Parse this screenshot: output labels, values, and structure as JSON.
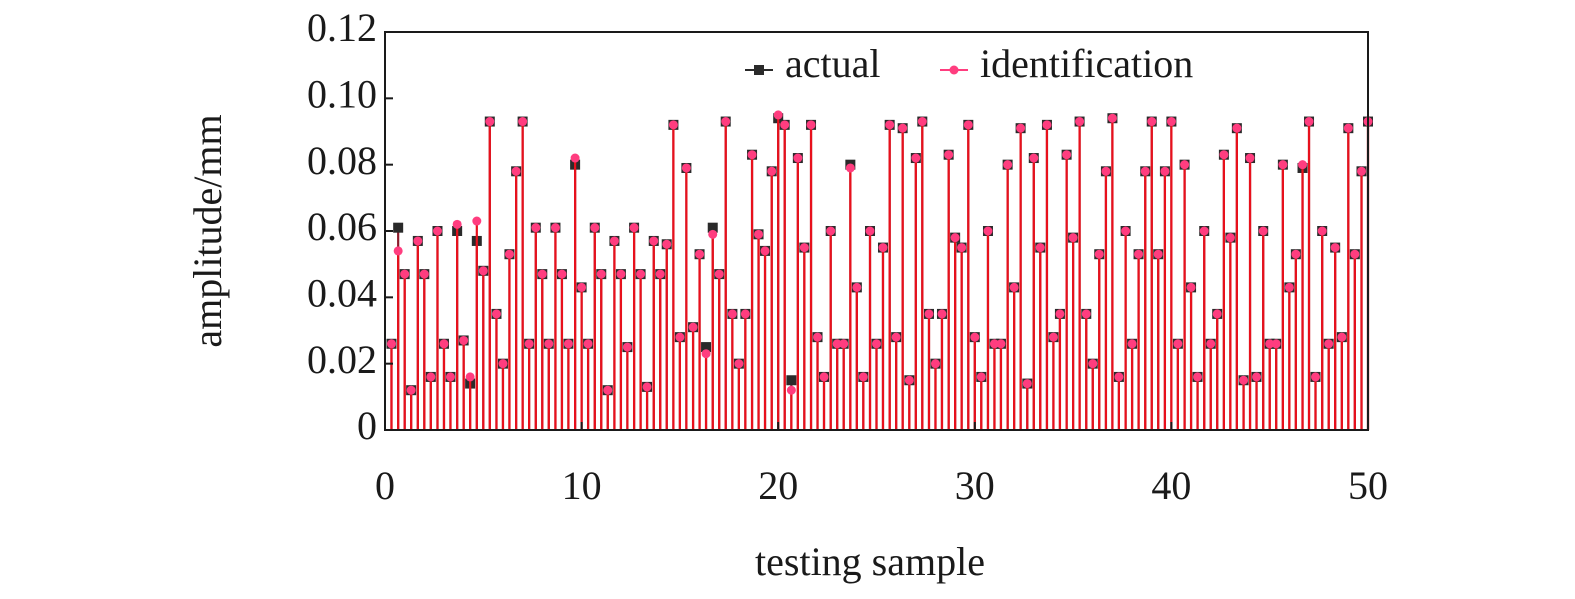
{
  "chart_data": {
    "type": "stem",
    "xlabel": "testing sample",
    "ylabel": "amplitude/mm",
    "xlim": [
      0,
      50
    ],
    "xticks": [
      0,
      10,
      20,
      30,
      40,
      50
    ],
    "ylim": [
      0,
      0.12
    ],
    "yticks": [
      {
        "value": 0,
        "label": "0"
      },
      {
        "value": 0.02,
        "label": "0.02"
      },
      {
        "value": 0.04,
        "label": "0.04"
      },
      {
        "value": 0.06,
        "label": "0.06"
      },
      {
        "value": 0.08,
        "label": "0.08"
      },
      {
        "value": 0.1,
        "label": "0.10"
      },
      {
        "value": 0.12,
        "label": "0.12"
      }
    ],
    "legend": "upper right",
    "x": [
      0.33,
      0.67,
      1,
      1.33,
      1.67,
      2,
      2.33,
      2.67,
      3,
      3.33,
      3.67,
      4,
      4.33,
      4.67,
      5,
      5.33,
      5.67,
      6,
      6.33,
      6.67,
      7,
      7.33,
      7.67,
      8,
      8.33,
      8.67,
      9,
      9.33,
      9.67,
      10,
      10.33,
      10.67,
      11,
      11.33,
      11.67,
      12,
      12.33,
      12.67,
      13,
      13.33,
      13.67,
      14,
      14.33,
      14.67,
      15,
      15.33,
      15.67,
      16,
      16.33,
      16.67,
      17,
      17.33,
      17.67,
      18,
      18.33,
      18.67,
      19,
      19.33,
      19.67,
      20,
      20.33,
      20.67,
      21,
      21.33,
      21.67,
      22,
      22.33,
      22.67,
      23,
      23.33,
      23.67,
      24,
      24.33,
      24.67,
      25,
      25.33,
      25.67,
      26,
      26.33,
      26.67,
      27,
      27.33,
      27.67,
      28,
      28.33,
      28.67,
      29,
      29.33,
      29.67,
      30,
      30.33,
      30.67,
      31,
      31.33,
      31.67,
      32,
      32.33,
      32.67,
      33,
      33.33,
      33.67,
      34,
      34.33,
      34.67,
      35,
      35.33,
      35.67,
      36,
      36.33,
      36.67,
      37,
      37.33,
      37.67,
      38,
      38.33,
      38.67,
      39,
      39.33,
      39.67,
      40,
      40.33,
      40.67,
      41,
      41.33,
      41.67,
      42,
      42.33,
      42.67,
      43,
      43.33,
      43.67,
      44,
      44.33,
      44.67,
      45,
      45.33,
      45.67,
      46,
      46.33,
      46.67,
      47,
      47.33,
      47.67,
      48,
      48.33,
      48.67,
      49,
      49.33,
      49.67,
      50
    ],
    "series": [
      {
        "name": "actual",
        "color": "#2a2a2a",
        "stem_color": "#8b1a2a",
        "marker": "square",
        "values": [
          0.026,
          0.061,
          0.047,
          0.012,
          0.057,
          0.047,
          0.016,
          0.06,
          0.026,
          0.016,
          0.06,
          0.027,
          0.014,
          0.057,
          0.048,
          0.093,
          0.035,
          0.02,
          0.053,
          0.078,
          0.093,
          0.026,
          0.061,
          0.047,
          0.026,
          0.061,
          0.047,
          0.026,
          0.08,
          0.043,
          0.026,
          0.061,
          0.047,
          0.012,
          0.057,
          0.047,
          0.025,
          0.061,
          0.047,
          0.013,
          0.057,
          0.047,
          0.056,
          0.092,
          0.028,
          0.079,
          0.031,
          0.053,
          0.025,
          0.061,
          0.047,
          0.093,
          0.035,
          0.02,
          0.035,
          0.083,
          0.059,
          0.054,
          0.078,
          0.094,
          0.092,
          0.015,
          0.082,
          0.055,
          0.092,
          0.028,
          0.016,
          0.06,
          0.026,
          0.026,
          0.08,
          0.043,
          0.016,
          0.06,
          0.026,
          0.055,
          0.092,
          0.028,
          0.091,
          0.015,
          0.082,
          0.093,
          0.035,
          0.02,
          0.035,
          0.083,
          0.058,
          0.055,
          0.092,
          0.028,
          0.016,
          0.06,
          0.026,
          0.026,
          0.08,
          0.043,
          0.091,
          0.014,
          0.082,
          0.055,
          0.092,
          0.028,
          0.035,
          0.083,
          0.058,
          0.093,
          0.035,
          0.02,
          0.053,
          0.078,
          0.094,
          0.016,
          0.06,
          0.026,
          0.053,
          0.078,
          0.093,
          0.053,
          0.078,
          0.093,
          0.026,
          0.08,
          0.043,
          0.016,
          0.06,
          0.026,
          0.035,
          0.083,
          0.058,
          0.091,
          0.015,
          0.082,
          0.016,
          0.06,
          0.026,
          0.026,
          0.08,
          0.043,
          0.053,
          0.079,
          0.093,
          0.016,
          0.06,
          0.026,
          0.055,
          0.028,
          0.091,
          0.053,
          0.078,
          0.093
        ]
      },
      {
        "name": "identification",
        "color": "#ff3d7f",
        "stem_color": "#e8101c",
        "marker": "circle",
        "values": [
          0.026,
          0.054,
          0.047,
          0.012,
          0.057,
          0.047,
          0.016,
          0.06,
          0.026,
          0.016,
          0.062,
          0.027,
          0.016,
          0.063,
          0.048,
          0.093,
          0.035,
          0.02,
          0.053,
          0.078,
          0.093,
          0.026,
          0.061,
          0.047,
          0.026,
          0.061,
          0.047,
          0.026,
          0.082,
          0.043,
          0.026,
          0.061,
          0.047,
          0.012,
          0.057,
          0.047,
          0.025,
          0.061,
          0.047,
          0.013,
          0.057,
          0.047,
          0.056,
          0.092,
          0.028,
          0.079,
          0.031,
          0.053,
          0.023,
          0.059,
          0.047,
          0.093,
          0.035,
          0.02,
          0.035,
          0.083,
          0.059,
          0.054,
          0.078,
          0.095,
          0.092,
          0.012,
          0.082,
          0.055,
          0.092,
          0.028,
          0.016,
          0.06,
          0.026,
          0.026,
          0.079,
          0.043,
          0.016,
          0.06,
          0.026,
          0.055,
          0.092,
          0.028,
          0.091,
          0.015,
          0.082,
          0.093,
          0.035,
          0.02,
          0.035,
          0.083,
          0.058,
          0.055,
          0.092,
          0.028,
          0.016,
          0.06,
          0.026,
          0.026,
          0.08,
          0.043,
          0.091,
          0.014,
          0.082,
          0.055,
          0.092,
          0.028,
          0.035,
          0.083,
          0.058,
          0.093,
          0.035,
          0.02,
          0.053,
          0.078,
          0.094,
          0.016,
          0.06,
          0.026,
          0.053,
          0.078,
          0.093,
          0.053,
          0.078,
          0.093,
          0.026,
          0.08,
          0.043,
          0.016,
          0.06,
          0.026,
          0.035,
          0.083,
          0.058,
          0.091,
          0.015,
          0.082,
          0.016,
          0.06,
          0.026,
          0.026,
          0.08,
          0.043,
          0.053,
          0.08,
          0.093,
          0.016,
          0.06,
          0.026,
          0.055,
          0.028,
          0.091,
          0.053,
          0.078,
          0.093
        ]
      }
    ]
  }
}
